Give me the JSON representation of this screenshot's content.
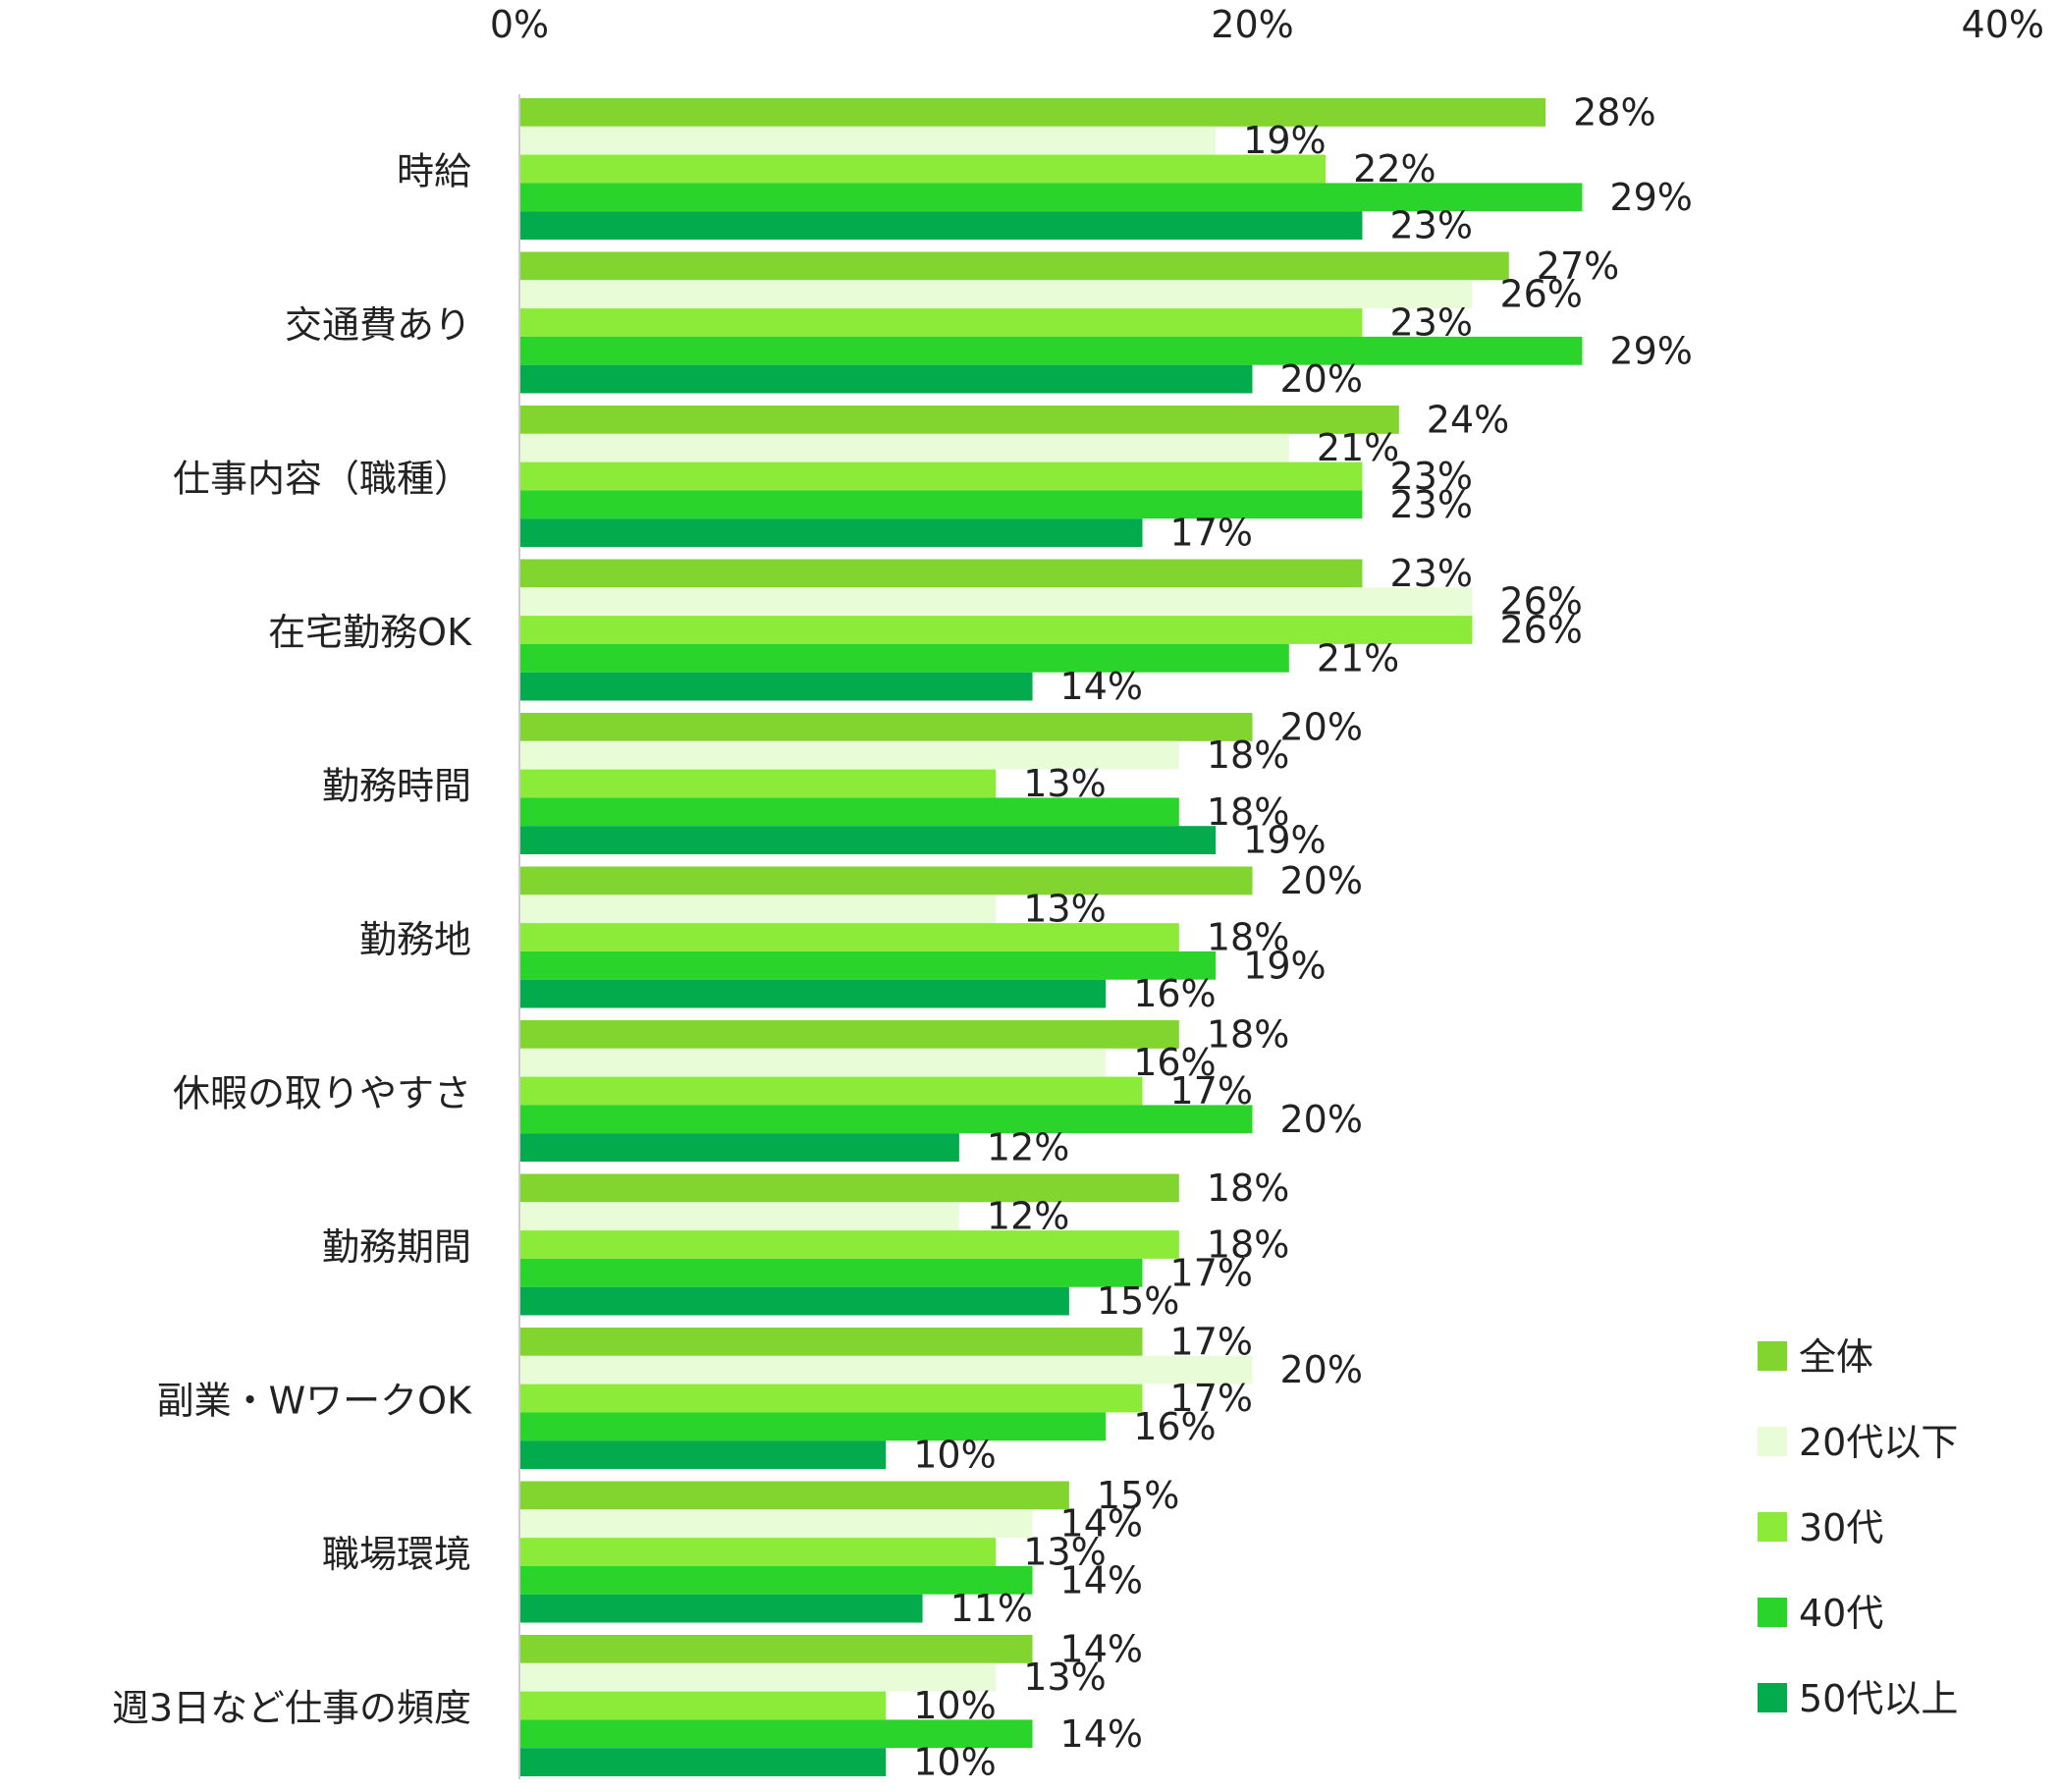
{
  "chart_data": {
    "type": "bar",
    "orientation": "horizontal",
    "xlim": [
      0,
      40
    ],
    "x_ticks": [
      "0%",
      "20%",
      "40%"
    ],
    "x_tick_values": [
      0,
      20,
      40
    ],
    "value_suffix": "%",
    "grid": false,
    "legend_position": "bottom-right",
    "categories": [
      "時給",
      "交通費あり",
      "仕事内容（職種）",
      "在宅勤務OK",
      "勤務時間",
      "勤務地",
      "休暇の取りやすさ",
      "勤務期間",
      "副業・WワークOK",
      "職場環境",
      "週3日など仕事の頻度"
    ],
    "series": [
      {
        "name": "全体",
        "color": "#82d42f",
        "values": [
          28,
          27,
          24,
          23,
          20,
          20,
          18,
          18,
          17,
          15,
          14
        ]
      },
      {
        "name": "20代以下",
        "color": "#e8fcd8",
        "values": [
          19,
          26,
          21,
          26,
          18,
          13,
          16,
          12,
          20,
          14,
          13
        ]
      },
      {
        "name": "30代",
        "color": "#8ceb38",
        "values": [
          22,
          23,
          23,
          26,
          13,
          18,
          17,
          18,
          17,
          13,
          10
        ]
      },
      {
        "name": "40代",
        "color": "#2bd42b",
        "values": [
          29,
          29,
          23,
          21,
          18,
          19,
          20,
          17,
          16,
          14,
          14
        ]
      },
      {
        "name": "50代以上",
        "color": "#03ab4c",
        "values": [
          23,
          20,
          17,
          14,
          19,
          16,
          12,
          15,
          10,
          11,
          10
        ]
      }
    ]
  }
}
